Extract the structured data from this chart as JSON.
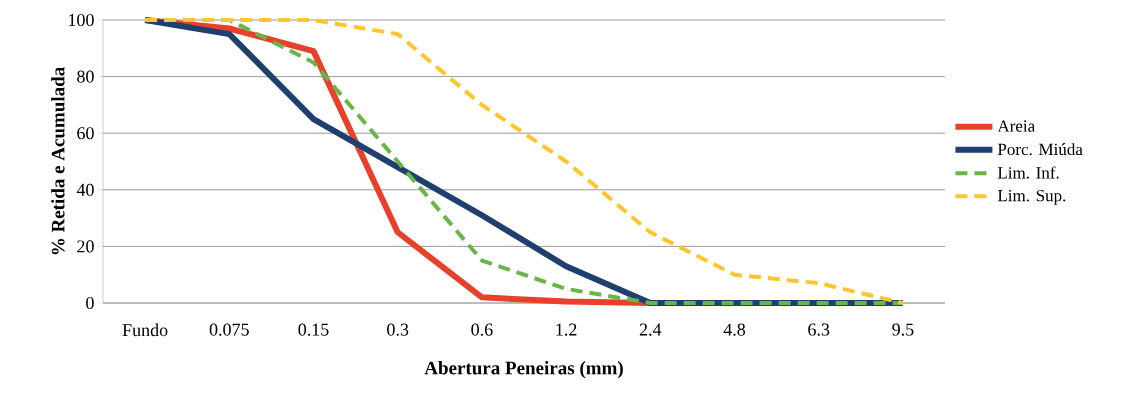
{
  "chart_data": {
    "type": "line",
    "xlabel": "Abertura Peneiras (mm)",
    "ylabel": "% Retida e Acumulada",
    "categories": [
      "Fundo",
      "0.075",
      "0.15",
      "0.3",
      "0.6",
      "1.2",
      "2.4",
      "4.8",
      "6.3",
      "9.5"
    ],
    "series": [
      {
        "name": "Areia",
        "color": "#e8402a",
        "line_style": "solid",
        "values": [
          100,
          97,
          89,
          25,
          2,
          0.5,
          0,
          null,
          null,
          null
        ]
      },
      {
        "name": "Porc. Miúda",
        "color": "#1f3f6e",
        "line_style": "solid",
        "values": [
          100,
          95,
          65,
          48,
          31,
          13,
          0,
          0,
          0,
          0
        ]
      },
      {
        "name": "Lim. Inf.",
        "color": "#6ab547",
        "line_style": "dashed",
        "values": [
          100,
          100,
          85,
          50,
          15,
          5,
          0,
          0,
          0,
          0
        ]
      },
      {
        "name": "Lim. Sup.",
        "color": "#fdc52e",
        "line_style": "dashed",
        "values": [
          100,
          100,
          100,
          95,
          70,
          50,
          25,
          10,
          7,
          0
        ]
      }
    ],
    "ylim": [
      0,
      100
    ],
    "yticks": [
      0,
      20,
      40,
      60,
      80,
      100
    ],
    "grid": "y",
    "legend": "right",
    "marker": "none"
  }
}
